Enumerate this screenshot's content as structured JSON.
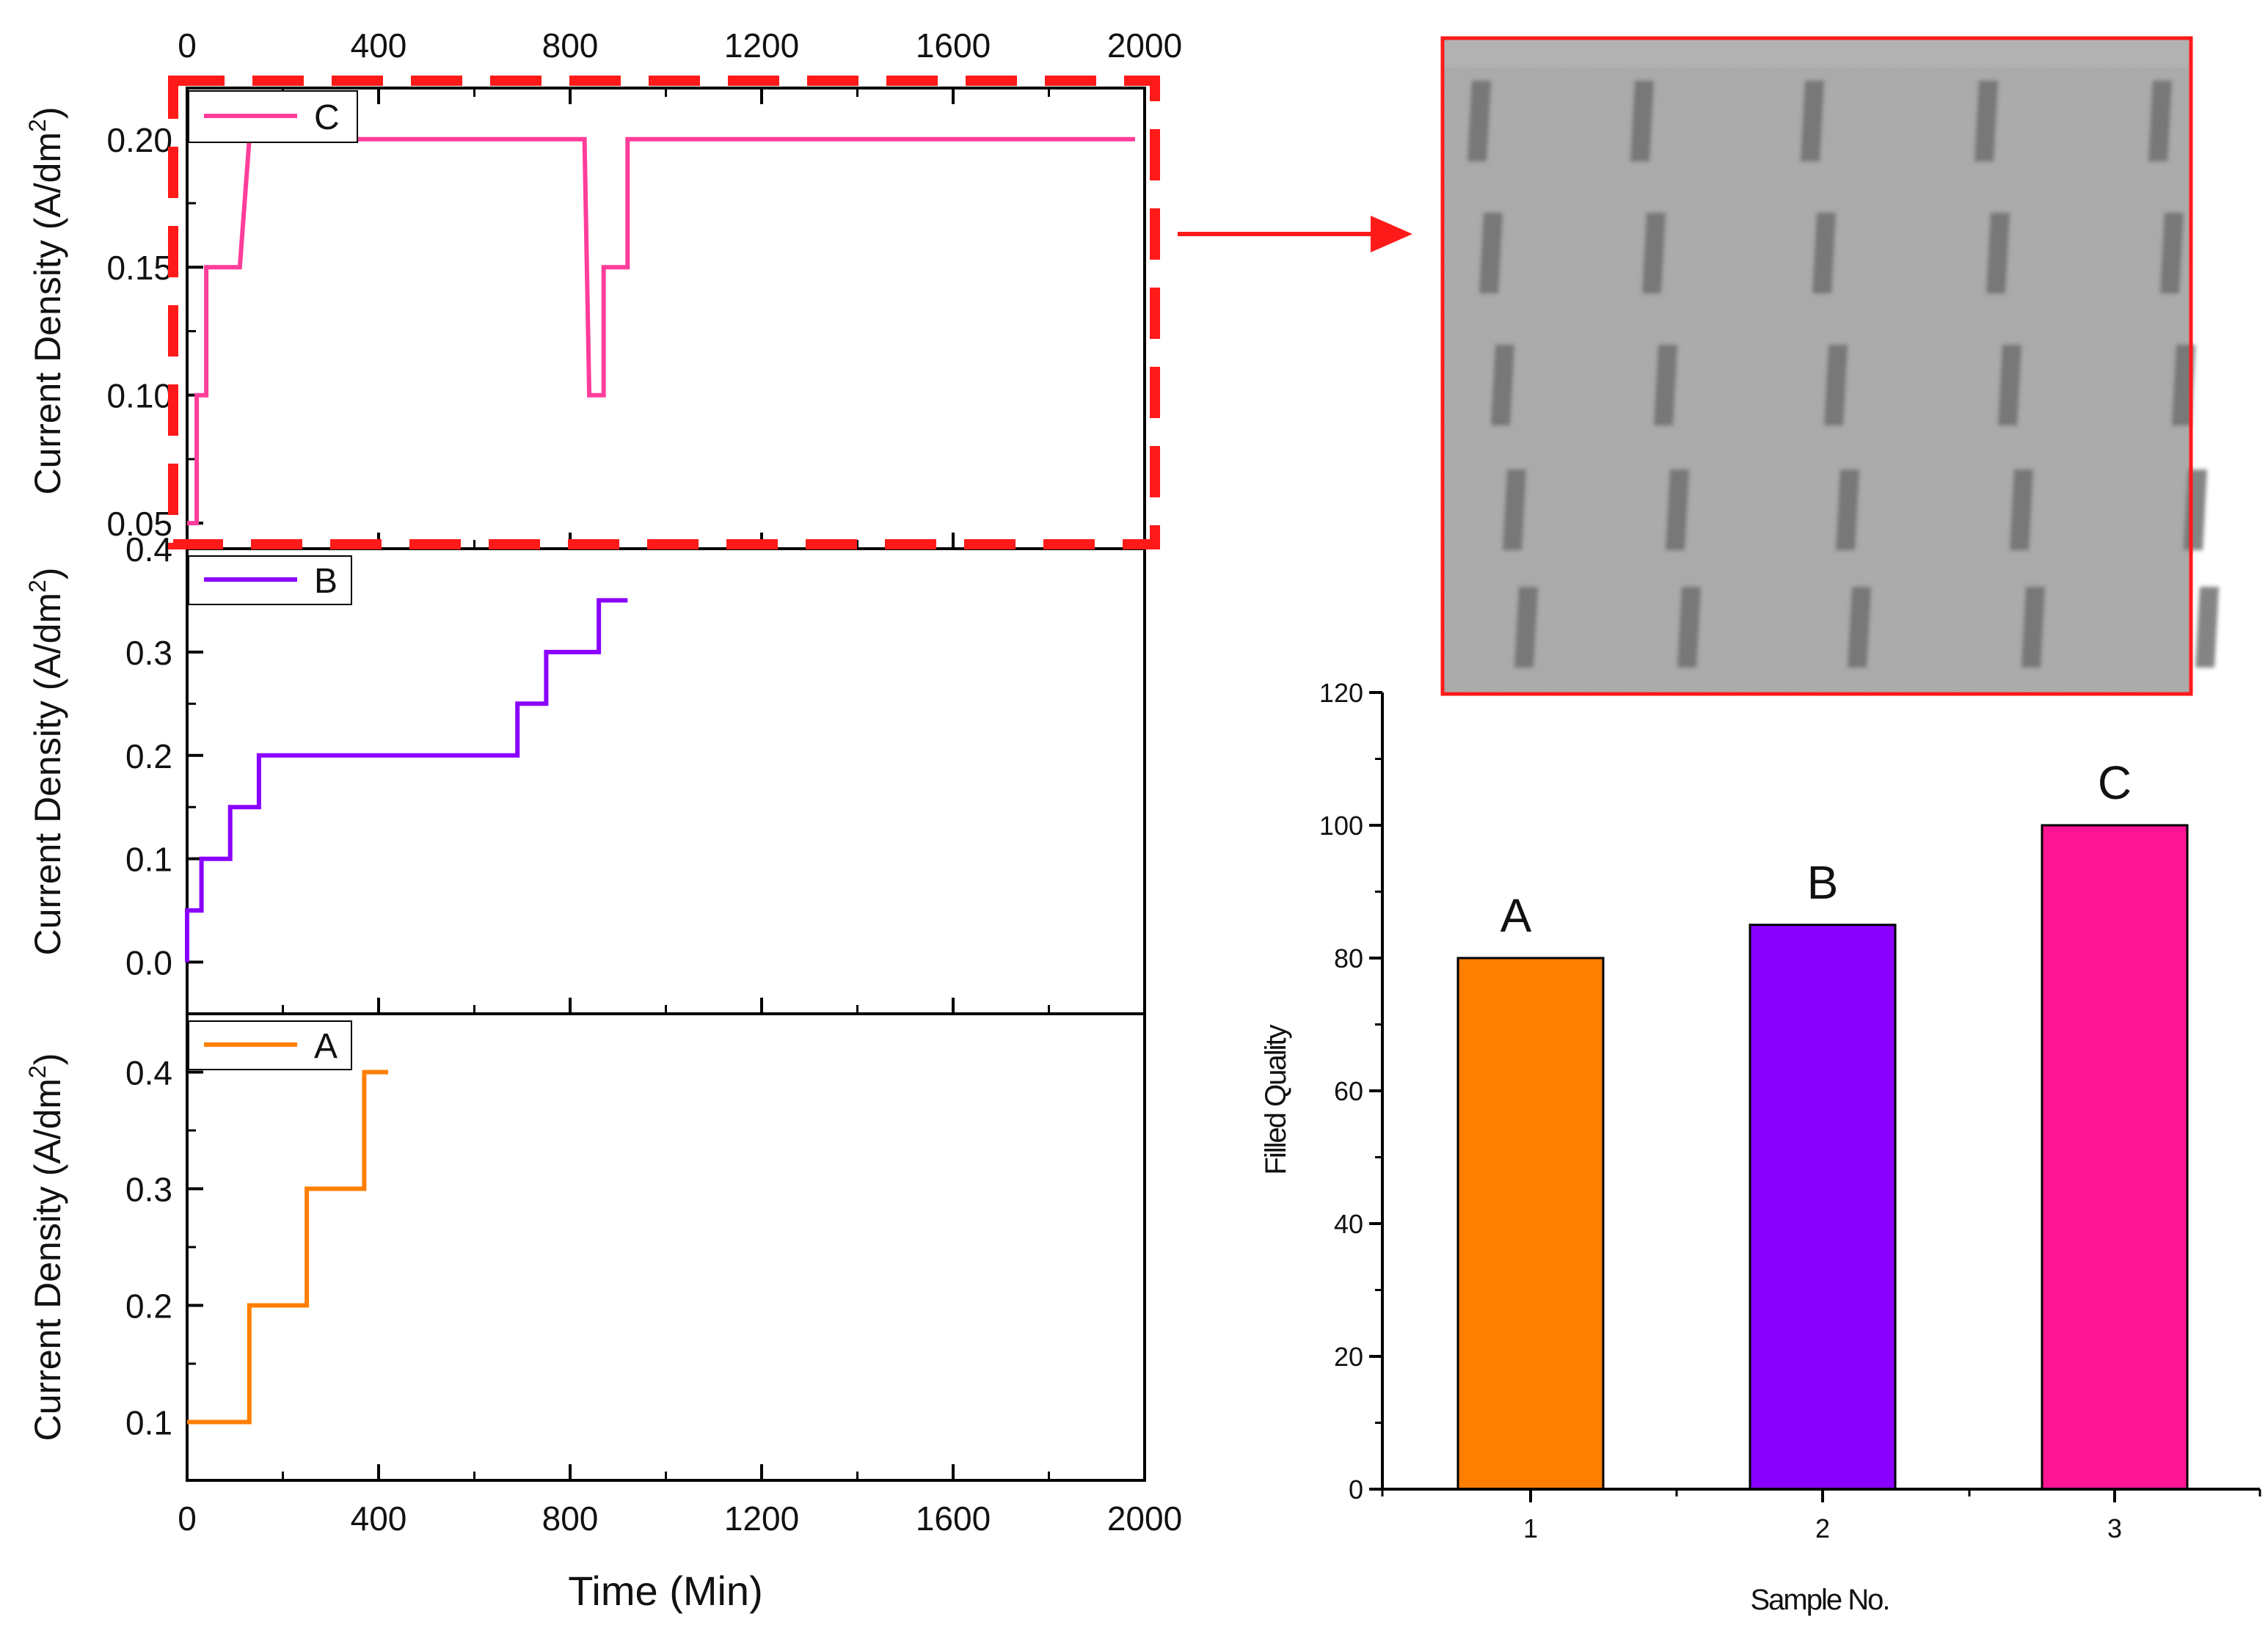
{
  "colors": {
    "A": "#ff7f00",
    "B": "#8a00ff",
    "C": "#ff1493",
    "C_line": "#ff3d9a",
    "highlight": "#ff1a1a"
  },
  "chart_data": [
    {
      "id": "C",
      "type": "line",
      "legend": "C",
      "ylabel": "Current Density (A/dm",
      "ylabel_sup": "2",
      "ylabel_close": ")",
      "xlim": [
        0,
        2000
      ],
      "ylim": [
        0.04,
        0.22
      ],
      "yticks": [
        0.05,
        0.1,
        0.15,
        0.2
      ],
      "ytick_labels": [
        "0.05",
        "0.10",
        "0.15",
        "0.20"
      ],
      "xticks_top": [
        0,
        400,
        800,
        1200,
        1600,
        2000
      ],
      "xticks_top_labels": [
        "0",
        "400",
        "800",
        "1200",
        "1600",
        "2000"
      ],
      "x": [
        0,
        20,
        20,
        40,
        40,
        60,
        60,
        110,
        110,
        130,
        130,
        830,
        830,
        840,
        840,
        870,
        870,
        920,
        920,
        1980
      ],
      "y": [
        0.05,
        0.05,
        0.1,
        0.1,
        0.15,
        0.15,
        0.15,
        0.15,
        0.15,
        0.2,
        0.2,
        0.2,
        0.2,
        0.1,
        0.1,
        0.1,
        0.15,
        0.15,
        0.2,
        0.2
      ]
    },
    {
      "id": "B",
      "type": "line",
      "legend": "B",
      "ylabel": "Current Density (A/dm",
      "ylabel_sup": "2",
      "ylabel_close": ")",
      "xlim": [
        0,
        2000
      ],
      "ylim": [
        -0.05,
        0.4
      ],
      "yticks": [
        0.0,
        0.1,
        0.2,
        0.3,
        0.4
      ],
      "ytick_labels": [
        "0.0",
        "0.1",
        "0.2",
        "0.3",
        "0.4"
      ],
      "x": [
        0,
        0,
        10,
        10,
        30,
        30,
        90,
        90,
        150,
        150,
        690,
        690,
        750,
        750,
        860,
        860,
        920
      ],
      "y": [
        0.0,
        0.05,
        0.05,
        0.05,
        0.05,
        0.1,
        0.1,
        0.15,
        0.15,
        0.2,
        0.2,
        0.25,
        0.25,
        0.3,
        0.3,
        0.35,
        0.35
      ]
    },
    {
      "id": "A",
      "type": "line",
      "legend": "A",
      "ylabel": "Current Density (A/dm",
      "ylabel_sup": "2",
      "ylabel_close": ")",
      "xlabel": "Time (Min)",
      "xlim": [
        0,
        2000
      ],
      "ylim": [
        0.05,
        0.45
      ],
      "yticks": [
        0.1,
        0.2,
        0.3,
        0.4
      ],
      "ytick_labels": [
        "0.1",
        "0.2",
        "0.3",
        "0.4"
      ],
      "xticks": [
        0,
        400,
        800,
        1200,
        1600,
        2000
      ],
      "xtick_labels": [
        "0",
        "400",
        "800",
        "1200",
        "1600",
        "2000"
      ],
      "x": [
        0,
        130,
        130,
        250,
        250,
        370,
        370,
        420
      ],
      "y": [
        0.1,
        0.1,
        0.2,
        0.2,
        0.3,
        0.3,
        0.4,
        0.4
      ]
    },
    {
      "id": "quality",
      "type": "bar",
      "categories": [
        "1",
        "2",
        "3"
      ],
      "values": [
        80,
        85,
        100
      ],
      "bar_labels": [
        "A",
        "B",
        "C"
      ],
      "xlabel": "Sample No.",
      "ylabel": "Filled Quality",
      "ylim": [
        0,
        120
      ],
      "yticks": [
        0,
        20,
        40,
        60,
        80,
        100,
        120
      ],
      "ytick_labels": [
        "0",
        "20",
        "40",
        "60",
        "80",
        "100",
        "120"
      ]
    }
  ]
}
